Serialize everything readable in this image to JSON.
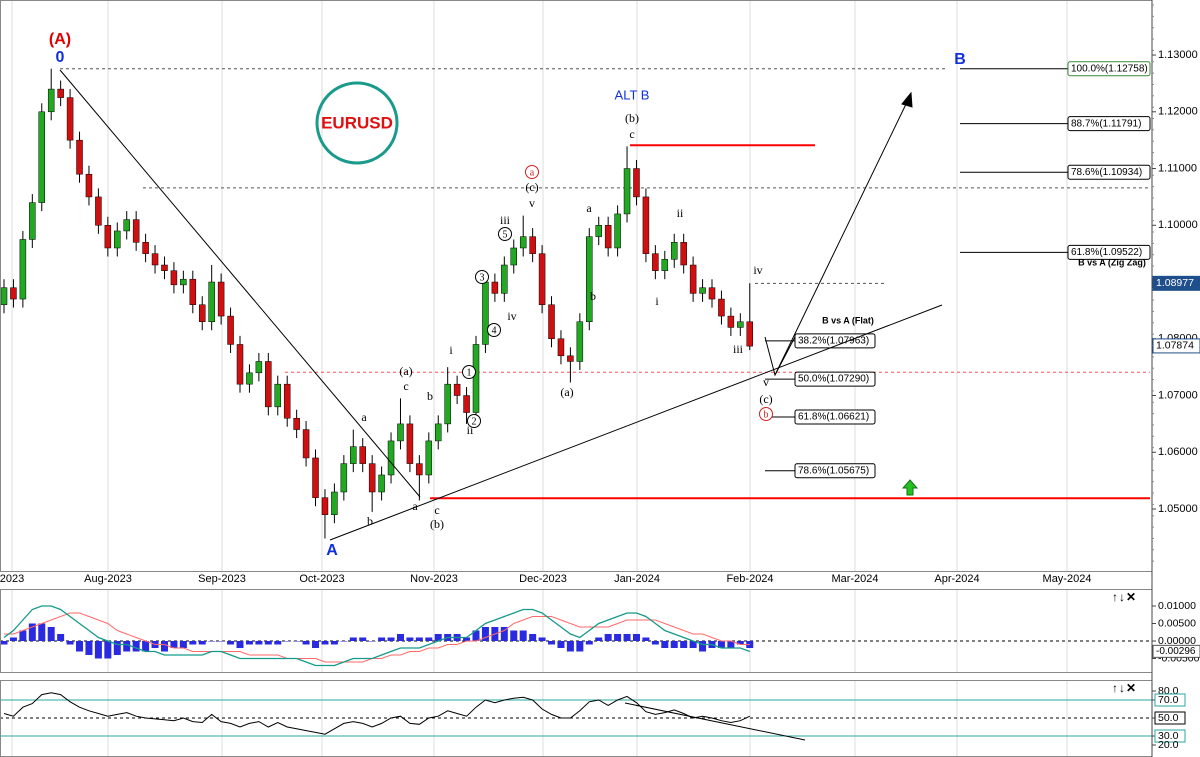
{
  "chart_data": {
    "type": "candlestick",
    "symbol": "EURUSD",
    "ylim": [
      1.0389,
      1.1397
    ],
    "yticks": [
      {
        "value": 1.13,
        "label": "1.13000"
      },
      {
        "value": 1.12,
        "label": "1.12000"
      },
      {
        "value": 1.11,
        "label": "1.11000"
      },
      {
        "value": 1.1,
        "label": "1.10000"
      },
      {
        "value": 1.09,
        "label": "1.09000"
      },
      {
        "value": 1.08,
        "label": "1.08000"
      },
      {
        "value": 1.07,
        "label": "1.07000"
      },
      {
        "value": 1.06,
        "label": "1.06000"
      },
      {
        "value": 1.05,
        "label": "1.05000"
      }
    ],
    "x_labels": [
      "2023",
      "Aug-2023",
      "Sep-2023",
      "Oct-2023",
      "Nov-2023",
      "Dec-2023",
      "Jan-2024",
      "Feb-2024",
      "Mar-2024",
      "Apr-2024",
      "May-2024"
    ],
    "up_color": "#22a822",
    "down_color": "#d01010",
    "candles": [
      [
        1.086,
        1.0905,
        1.0845,
        1.089
      ],
      [
        1.089,
        1.0905,
        1.0855,
        1.087
      ],
      [
        1.087,
        1.099,
        1.0855,
        1.0975
      ],
      [
        1.0975,
        1.1055,
        1.096,
        1.104
      ],
      [
        1.104,
        1.1215,
        1.1025,
        1.12
      ],
      [
        1.12,
        1.1276,
        1.1185,
        1.124
      ],
      [
        1.124,
        1.1255,
        1.121,
        1.1225
      ],
      [
        1.1225,
        1.124,
        1.1135,
        1.115
      ],
      [
        1.115,
        1.1165,
        1.1075,
        1.109
      ],
      [
        1.109,
        1.1105,
        1.1035,
        1.105
      ],
      [
        1.105,
        1.1065,
        1.0985,
        1.1
      ],
      [
        1.1,
        1.1015,
        1.0945,
        1.096
      ],
      [
        1.096,
        1.1005,
        1.0945,
        1.099
      ],
      [
        1.099,
        1.1025,
        1.0975,
        1.101
      ],
      [
        1.101,
        1.1025,
        1.0955,
        1.097
      ],
      [
        1.097,
        1.0985,
        1.0935,
        1.095
      ],
      [
        1.095,
        1.0965,
        1.0915,
        1.093
      ],
      [
        1.093,
        1.0945,
        1.0905,
        1.092
      ],
      [
        1.092,
        1.0935,
        1.088,
        1.0895
      ],
      [
        1.0895,
        1.092,
        1.088,
        1.0905
      ],
      [
        1.0905,
        1.092,
        1.0845,
        1.086
      ],
      [
        1.086,
        1.0875,
        1.0815,
        1.083
      ],
      [
        1.083,
        1.093,
        1.0815,
        1.09
      ],
      [
        1.09,
        1.0915,
        1.0825,
        1.084
      ],
      [
        1.084,
        1.0855,
        1.0775,
        1.079
      ],
      [
        1.079,
        1.0805,
        1.0705,
        1.072
      ],
      [
        1.072,
        1.0755,
        1.0705,
        1.074
      ],
      [
        1.074,
        1.0775,
        1.0725,
        1.076
      ],
      [
        1.076,
        1.0775,
        1.0665,
        1.068
      ],
      [
        1.068,
        1.0735,
        1.0665,
        1.072
      ],
      [
        1.072,
        1.0735,
        1.0645,
        1.066
      ],
      [
        1.066,
        1.0675,
        1.0625,
        1.064
      ],
      [
        1.064,
        1.0655,
        1.0575,
        1.059
      ],
      [
        1.059,
        1.0605,
        1.0505,
        1.052
      ],
      [
        1.052,
        1.0535,
        1.0448,
        1.049
      ],
      [
        1.049,
        1.0545,
        1.0475,
        1.053
      ],
      [
        1.053,
        1.0595,
        1.0515,
        1.058
      ],
      [
        1.058,
        1.064,
        1.0565,
        1.061
      ],
      [
        1.061,
        1.0625,
        1.0565,
        1.058
      ],
      [
        1.058,
        1.0595,
        1.0495,
        1.053
      ],
      [
        1.053,
        1.0575,
        1.0515,
        1.056
      ],
      [
        1.056,
        1.0635,
        1.0545,
        1.062
      ],
      [
        1.062,
        1.0695,
        1.0605,
        1.065
      ],
      [
        1.065,
        1.0665,
        1.0565,
        1.058
      ],
      [
        1.058,
        1.0595,
        1.0515,
        1.056
      ],
      [
        1.056,
        1.0635,
        1.0545,
        1.062
      ],
      [
        1.062,
        1.0665,
        1.0605,
        1.065
      ],
      [
        1.065,
        1.075,
        1.0635,
        1.072
      ],
      [
        1.072,
        1.0735,
        1.0685,
        1.07
      ],
      [
        1.07,
        1.0715,
        1.065,
        1.067
      ],
      [
        1.067,
        1.0805,
        1.0655,
        1.079
      ],
      [
        1.079,
        1.0915,
        1.0775,
        1.09
      ],
      [
        1.09,
        1.0915,
        1.0865,
        1.088
      ],
      [
        1.088,
        1.0945,
        1.0865,
        1.093
      ],
      [
        1.093,
        1.0975,
        1.0915,
        1.096
      ],
      [
        1.096,
        1.1017,
        1.0945,
        1.098
      ],
      [
        1.098,
        1.0995,
        1.0935,
        1.095
      ],
      [
        1.095,
        1.0965,
        1.0845,
        1.086
      ],
      [
        1.086,
        1.0875,
        1.0785,
        1.08
      ],
      [
        1.08,
        1.0815,
        1.0755,
        1.077
      ],
      [
        1.077,
        1.0785,
        1.0723,
        1.076
      ],
      [
        1.076,
        1.0845,
        1.0745,
        1.083
      ],
      [
        1.083,
        1.0995,
        1.0815,
        1.098
      ],
      [
        1.098,
        1.1015,
        1.0965,
        1.1
      ],
      [
        1.1,
        1.1015,
        1.0945,
        1.096
      ],
      [
        1.096,
        1.1035,
        1.0945,
        1.102
      ],
      [
        1.102,
        1.1139,
        1.1005,
        1.11
      ],
      [
        1.11,
        1.1115,
        1.1035,
        1.105
      ],
      [
        1.105,
        1.1065,
        1.0935,
        1.095
      ],
      [
        1.095,
        1.0965,
        1.0905,
        1.092
      ],
      [
        1.092,
        1.0955,
        1.0905,
        1.094
      ],
      [
        1.094,
        1.0985,
        1.0925,
        1.097
      ],
      [
        1.097,
        1.0985,
        1.0915,
        1.093
      ],
      [
        1.093,
        1.0945,
        1.0865,
        1.088
      ],
      [
        1.088,
        1.0905,
        1.0865,
        1.089
      ],
      [
        1.089,
        1.0905,
        1.0855,
        1.087
      ],
      [
        1.087,
        1.0885,
        1.0825,
        1.084
      ],
      [
        1.084,
        1.0855,
        1.0805,
        1.082
      ],
      [
        1.082,
        1.0845,
        1.0805,
        1.083
      ],
      [
        1.083,
        1.0898,
        1.078,
        1.0787
      ]
    ],
    "price_labels": [
      {
        "value": 1.08977,
        "color": "#1f4e8c"
      },
      {
        "value": 1.07874,
        "color": "#ffffff"
      }
    ],
    "levels": [
      {
        "value": 1.12758,
        "color": "#555555",
        "dash": true
      },
      {
        "value": 1.1066,
        "color": "#555555",
        "dash": true
      },
      {
        "value": 1.1141,
        "color": "#ff0000",
        "dash": false
      },
      {
        "value": 1.0519,
        "color": "#ff0000",
        "dash": false
      },
      {
        "value": 1.0741,
        "color": "#ff5050",
        "dash": true
      },
      {
        "value": 1.08977,
        "color": "#555555",
        "dash": true
      }
    ],
    "fib_levels": [
      {
        "value": 1.12758,
        "label": "100.0%(1.12758)"
      },
      {
        "value": 1.11791,
        "label": "88.7%(1.11791)"
      },
      {
        "value": 1.10934,
        "label": "78.6%(1.10934)"
      },
      {
        "value": 1.09522,
        "label": "61.8%(1.09522)"
      },
      {
        "value": 1.07963,
        "label": "38.2%(1.07963)"
      },
      {
        "value": 1.0729,
        "label": "50.0%(1.07290)"
      },
      {
        "value": 1.06621,
        "label": "61.8%(1.06621)"
      },
      {
        "value": 1.05675,
        "label": "78.6%(1.05675)"
      }
    ],
    "annotations": [
      {
        "text": "(A)",
        "color": "#e00000"
      },
      {
        "text": "0",
        "color": "#1030e0"
      },
      {
        "text": "A",
        "color": "#1030e0"
      },
      {
        "text": "B",
        "color": "#1030e0"
      },
      {
        "text": "ALT B",
        "color": "#1030e0"
      },
      {
        "text": "(b)",
        "color": "#000000"
      },
      {
        "text": "c",
        "color": "#000000"
      },
      {
        "text": "(c)",
        "color": "#000000"
      },
      {
        "text": "a",
        "color": "#d02020",
        "style": "circled"
      },
      {
        "text": "v",
        "color": "#000000"
      },
      {
        "text": "iii",
        "color": "#000000"
      },
      {
        "text": "5",
        "color": "#000000",
        "style": "circled"
      },
      {
        "text": "3",
        "color": "#000000",
        "style": "circled"
      },
      {
        "text": "iv",
        "color": "#000000"
      },
      {
        "text": "4",
        "color": "#000000",
        "style": "circled"
      },
      {
        "text": "i",
        "color": "#000000"
      },
      {
        "text": "(a)",
        "color": "#000000"
      },
      {
        "text": "c",
        "color": "#000000"
      },
      {
        "text": "b",
        "color": "#000000"
      },
      {
        "text": "a",
        "color": "#000000"
      },
      {
        "text": "1",
        "color": "#000000",
        "style": "circled"
      },
      {
        "text": "2",
        "color": "#000000",
        "style": "circled"
      },
      {
        "text": "ii",
        "color": "#000000"
      },
      {
        "text": "b",
        "color": "#000000"
      },
      {
        "text": "a",
        "color": "#000000"
      },
      {
        "text": "c",
        "color": "#000000"
      },
      {
        "text": "(b)",
        "color": "#000000"
      },
      {
        "text": "a",
        "color": "#000000"
      },
      {
        "text": "ii",
        "color": "#000000"
      },
      {
        "text": "b",
        "color": "#000000"
      },
      {
        "text": "(a)",
        "color": "#000000"
      },
      {
        "text": "i",
        "color": "#000000"
      },
      {
        "text": "iv",
        "color": "#000000"
      },
      {
        "text": "iii",
        "color": "#000000"
      },
      {
        "text": "v",
        "color": "#000000"
      },
      {
        "text": "(c)",
        "color": "#000000"
      },
      {
        "text": "b",
        "color": "#d02020",
        "style": "circled"
      },
      {
        "text": "B vs A (Flat)",
        "color": "#000000"
      },
      {
        "text": "B vs A (Zig Zag)",
        "color": "#000000"
      }
    ],
    "panel_controls": "↑↓✕",
    "macd": {
      "ylim": [
        -0.00886,
        0.01457
      ],
      "yticks": [
        {
          "value": 0.01,
          "label": "0.01000"
        },
        {
          "value": 0.005,
          "label": "0.00500"
        },
        {
          "value": 0,
          "label": "0.00000"
        },
        {
          "value": -0.005,
          "label": "-0.00500"
        }
      ],
      "last_label": {
        "value": -0.00296,
        "label": "-0.00296"
      },
      "hist_color": "#2a2ae0",
      "macd_color": "#159a8a",
      "signal_color": "#ff6a6a",
      "hist": [
        -0.001,
        0.001,
        0.003,
        0.005,
        0.005,
        0.004,
        0.002,
        -0.001,
        -0.003,
        -0.004,
        -0.005,
        -0.005,
        -0.004,
        -0.003,
        -0.003,
        -0.003,
        -0.002,
        -0.003,
        -0.002,
        -0.002,
        -0.001,
        -0.001,
        0,
        0,
        -0.001,
        -0.002,
        -0.001,
        -0.001,
        -0.001,
        -0.001,
        0,
        0,
        -0.001,
        -0.002,
        -0.001,
        -0.001,
        0,
        0.001,
        0.001,
        0,
        0.001,
        0.001,
        0.002,
        0.001,
        0.001,
        0.001,
        0.002,
        0.002,
        0.002,
        0.001,
        0.003,
        0.004,
        0.004,
        0.004,
        0.003,
        0.003,
        0.002,
        0.001,
        -0.001,
        -0.002,
        -0.003,
        -0.003,
        -0.001,
        0.001,
        0.002,
        0.002,
        0.002,
        0.002,
        0.001,
        -0.001,
        -0.002,
        -0.002,
        -0.002,
        -0.002,
        -0.003,
        -0.002,
        -0.002,
        -0.002,
        -0.001,
        -0.002
      ],
      "macd": [
        0.001,
        0.003,
        0.006,
        0.009,
        0.01,
        0.01,
        0.009,
        0.007,
        0.005,
        0.003,
        0.001,
        0,
        -0.001,
        -0.001,
        -0.002,
        -0.003,
        -0.003,
        -0.004,
        -0.004,
        -0.004,
        -0.004,
        -0.004,
        -0.003,
        -0.003,
        -0.004,
        -0.005,
        -0.005,
        -0.005,
        -0.005,
        -0.005,
        -0.005,
        -0.005,
        -0.006,
        -0.007,
        -0.007,
        -0.007,
        -0.006,
        -0.005,
        -0.005,
        -0.005,
        -0.004,
        -0.003,
        -0.002,
        -0.002,
        -0.002,
        -0.001,
        0,
        0.001,
        0.001,
        0.001,
        0.003,
        0.005,
        0.006,
        0.007,
        0.008,
        0.009,
        0.009,
        0.008,
        0.006,
        0.004,
        0.002,
        0.001,
        0.003,
        0.005,
        0.006,
        0.007,
        0.008,
        0.008,
        0.007,
        0.005,
        0.003,
        0.002,
        0.001,
        0,
        -0.001,
        -0.001,
        -0.002,
        -0.002,
        -0.002,
        -0.003
      ],
      "signal": [
        0.002,
        0.002,
        0.003,
        0.004,
        0.005,
        0.006,
        0.007,
        0.008,
        0.008,
        0.007,
        0.006,
        0.005,
        0.003,
        0.002,
        0.001,
        0,
        -0.001,
        -0.001,
        -0.002,
        -0.002,
        -0.003,
        -0.003,
        -0.003,
        -0.003,
        -0.003,
        -0.003,
        -0.004,
        -0.004,
        -0.004,
        -0.004,
        -0.005,
        -0.005,
        -0.005,
        -0.005,
        -0.006,
        -0.006,
        -0.006,
        -0.006,
        -0.006,
        -0.005,
        -0.005,
        -0.004,
        -0.004,
        -0.003,
        -0.003,
        -0.002,
        -0.002,
        -0.001,
        -0.001,
        0,
        0,
        0.001,
        0.002,
        0.003,
        0.005,
        0.006,
        0.007,
        0.007,
        0.007,
        0.006,
        0.005,
        0.004,
        0.004,
        0.004,
        0.004,
        0.005,
        0.006,
        0.006,
        0.006,
        0.006,
        0.005,
        0.004,
        0.003,
        0.002,
        0.002,
        0.001,
        0,
        0,
        -0.001,
        -0.001
      ]
    },
    "rsi": {
      "ylim": [
        6.7,
        91.1
      ],
      "yticks": [
        {
          "value": 80,
          "label": "80.0"
        },
        {
          "value": 70,
          "label": "70.0"
        },
        {
          "value": 50,
          "label": "50.0"
        },
        {
          "value": 30,
          "label": "30.0"
        },
        {
          "value": 20,
          "label": "20.0"
        }
      ],
      "bands": [
        70,
        50,
        30
      ],
      "color": "#000000",
      "values": [
        55,
        52,
        62,
        66,
        76,
        78,
        76,
        68,
        62,
        58,
        55,
        52,
        54,
        56,
        52,
        50,
        49,
        48,
        47,
        50,
        46,
        45,
        54,
        46,
        44,
        40,
        44,
        46,
        40,
        45,
        40,
        38,
        36,
        34,
        32,
        38,
        44,
        46,
        44,
        40,
        44,
        50,
        52,
        44,
        43,
        50,
        52,
        58,
        55,
        52,
        62,
        70,
        67,
        70,
        72,
        73,
        70,
        60,
        54,
        50,
        50,
        58,
        68,
        70,
        64,
        70,
        74,
        67,
        57,
        54,
        56,
        59,
        55,
        50,
        52,
        50,
        47,
        45,
        47,
        52
      ]
    }
  }
}
